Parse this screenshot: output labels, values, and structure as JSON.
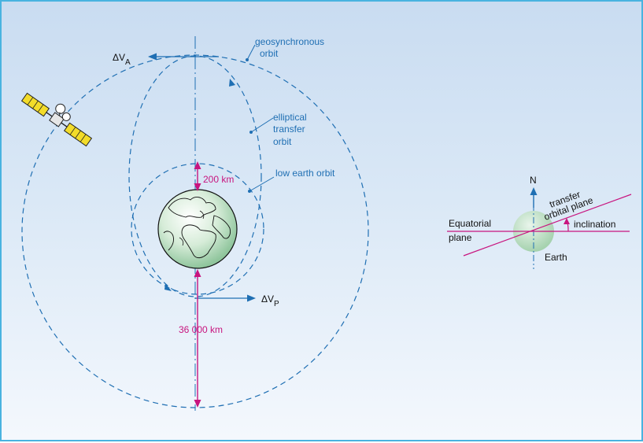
{
  "labels": {
    "delta_va": "ΔV",
    "delta_va_sub": "A",
    "delta_vp": "ΔV",
    "delta_vp_sub": "P",
    "geosynchronous_1": "geosynchronous",
    "geosynchronous_2": "orbit",
    "elliptical_1": "elliptical",
    "elliptical_2": "transfer",
    "elliptical_3": "orbit",
    "low_earth_orbit": "low earth orbit",
    "altitude_low": "200  km",
    "altitude_geo": "36 000 km",
    "north": "N",
    "transfer_plane_1": "transfer",
    "transfer_plane_2": "orbital plane",
    "equatorial_1": "Equatorial",
    "equatorial_2": "plane",
    "inclination": "inclination",
    "earth": "Earth"
  },
  "colors": {
    "orbit_blue": "#1f6fb3",
    "dimension_magenta": "#c8157f",
    "earth_green": "#b8dcc0",
    "frame_border": "#49b3e0",
    "background_top": "#c9dcf1",
    "background_bottom": "#f4f8fd"
  }
}
